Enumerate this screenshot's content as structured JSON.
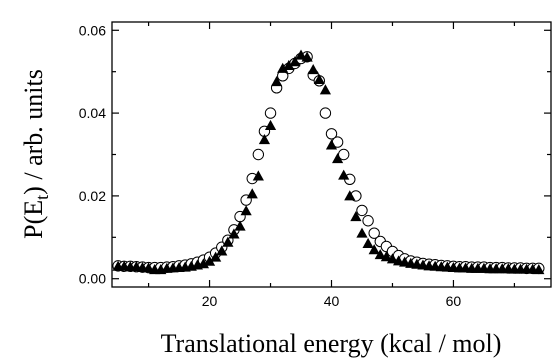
{
  "chart_data": {
    "type": "scatter",
    "xlabel": "Translational energy (kcal / mol)",
    "ylabel_main": "P(E",
    "ylabel_sub": "t",
    "ylabel_rest": ") / arb. units",
    "xlim": [
      4,
      76
    ],
    "ylim": [
      -0.002,
      0.062
    ],
    "xticks": [
      20,
      40,
      60
    ],
    "xtick_labels": [
      "20",
      "40",
      "60"
    ],
    "yticks": [
      0.0,
      0.02,
      0.04,
      0.06
    ],
    "ytick_labels": [
      "0.00",
      "0.02",
      "0.04",
      "0.06"
    ],
    "series": [
      {
        "marker": "open-circle",
        "color": "#000000",
        "x": [
          5,
          6,
          7,
          8,
          9,
          10,
          11,
          12,
          13,
          14,
          15,
          16,
          17,
          18,
          19,
          20,
          21,
          22,
          23,
          24,
          25,
          26,
          27,
          28,
          29,
          30,
          31,
          32,
          33,
          34,
          35,
          36,
          37,
          38,
          39,
          40,
          41,
          42,
          43,
          44,
          45,
          46,
          47,
          48,
          49,
          50,
          51,
          52,
          53,
          54,
          55,
          56,
          57,
          58,
          59,
          60,
          61,
          62,
          63,
          64,
          65,
          66,
          67,
          68,
          69,
          70,
          71,
          72,
          73,
          74
        ],
        "y": [
          0.0031,
          0.003,
          0.003,
          0.0029,
          0.0028,
          0.0027,
          0.0027,
          0.0027,
          0.0028,
          0.0029,
          0.0031,
          0.0033,
          0.0036,
          0.004,
          0.0045,
          0.0052,
          0.0062,
          0.0076,
          0.0093,
          0.0118,
          0.015,
          0.019,
          0.0242,
          0.03,
          0.0356,
          0.04,
          0.0461,
          0.049,
          0.0508,
          0.052,
          0.0532,
          0.0536,
          0.0492,
          0.0478,
          0.04,
          0.035,
          0.033,
          0.03,
          0.024,
          0.02,
          0.0165,
          0.014,
          0.011,
          0.009,
          0.0078,
          0.0066,
          0.0056,
          0.0048,
          0.0043,
          0.004,
          0.0037,
          0.0035,
          0.0034,
          0.0032,
          0.0031,
          0.003,
          0.0029,
          0.0029,
          0.0028,
          0.0028,
          0.0028,
          0.0027,
          0.0027,
          0.0027,
          0.0026,
          0.0026,
          0.0026,
          0.0025,
          0.0025,
          0.0025
        ]
      },
      {
        "marker": "filled-triangle",
        "color": "#000000",
        "x": [
          5,
          6,
          7,
          8,
          9,
          10,
          11,
          12,
          13,
          14,
          15,
          16,
          17,
          18,
          19,
          20,
          21,
          22,
          23,
          24,
          25,
          26,
          27,
          28,
          29,
          30,
          31,
          32,
          33,
          34,
          35,
          36,
          37,
          38,
          39,
          40,
          41,
          42,
          43,
          44,
          45,
          46,
          47,
          48,
          49,
          50,
          51,
          52,
          53,
          54,
          55,
          56,
          57,
          58,
          59,
          60,
          61,
          62,
          63,
          64,
          65,
          66,
          67,
          68,
          69,
          70,
          71,
          72,
          73,
          74
        ],
        "y": [
          0.003,
          0.003,
          0.0029,
          0.0029,
          0.0027,
          0.0026,
          0.0022,
          0.0022,
          0.0025,
          0.0026,
          0.0027,
          0.0028,
          0.003,
          0.0033,
          0.0036,
          0.0042,
          0.0052,
          0.0067,
          0.0088,
          0.0108,
          0.0127,
          0.0164,
          0.0205,
          0.0248,
          0.0336,
          0.037,
          0.0476,
          0.0508,
          0.0515,
          0.0524,
          0.054,
          0.0535,
          0.0505,
          0.0481,
          0.0456,
          0.0323,
          0.029,
          0.025,
          0.02,
          0.015,
          0.011,
          0.0085,
          0.007,
          0.0058,
          0.0053,
          0.0048,
          0.0043,
          0.004,
          0.0037,
          0.0035,
          0.0033,
          0.0031,
          0.003,
          0.0029,
          0.0028,
          0.0027,
          0.0026,
          0.0026,
          0.0025,
          0.0025,
          0.0025,
          0.0024,
          0.0024,
          0.0024,
          0.0024,
          0.0023,
          0.0023,
          0.0023,
          0.0023,
          0.0022
        ]
      }
    ]
  }
}
